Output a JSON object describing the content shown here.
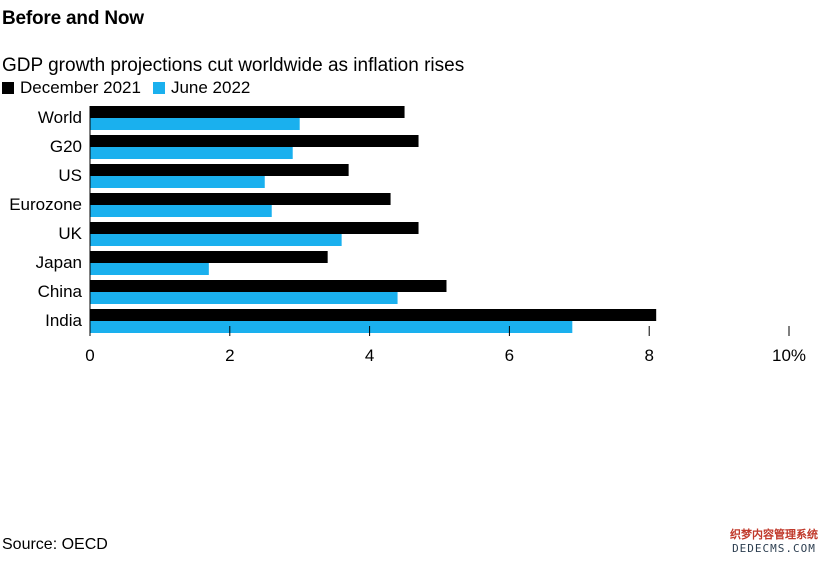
{
  "headline": "Before and Now",
  "subtitle": "GDP growth projections cut worldwide as inflation rises",
  "source": "Source: OECD",
  "watermark": {
    "line1": "织梦内容管理系统",
    "line2": "DEDECMS.COM"
  },
  "colors": {
    "series_a": "#000000",
    "series_b": "#1ab0ee",
    "axis": "#000000"
  },
  "chart_data": {
    "type": "bar",
    "orientation": "horizontal",
    "categories": [
      "World",
      "G20",
      "US",
      "Eurozone",
      "UK",
      "Japan",
      "China",
      "India"
    ],
    "series": [
      {
        "name": "December 2021",
        "values": [
          4.5,
          4.7,
          3.7,
          4.3,
          4.7,
          3.4,
          5.1,
          8.1
        ]
      },
      {
        "name": "June 2022",
        "values": [
          3.0,
          2.9,
          2.5,
          2.6,
          3.6,
          1.7,
          4.4,
          6.9
        ]
      }
    ],
    "xlim": [
      0,
      10
    ],
    "ticks": [
      0,
      2,
      4,
      6,
      8,
      10
    ],
    "tick_labels": [
      "0",
      "2",
      "4",
      "6",
      "8",
      "10%"
    ],
    "legend_position": "top-left",
    "grid": false
  }
}
